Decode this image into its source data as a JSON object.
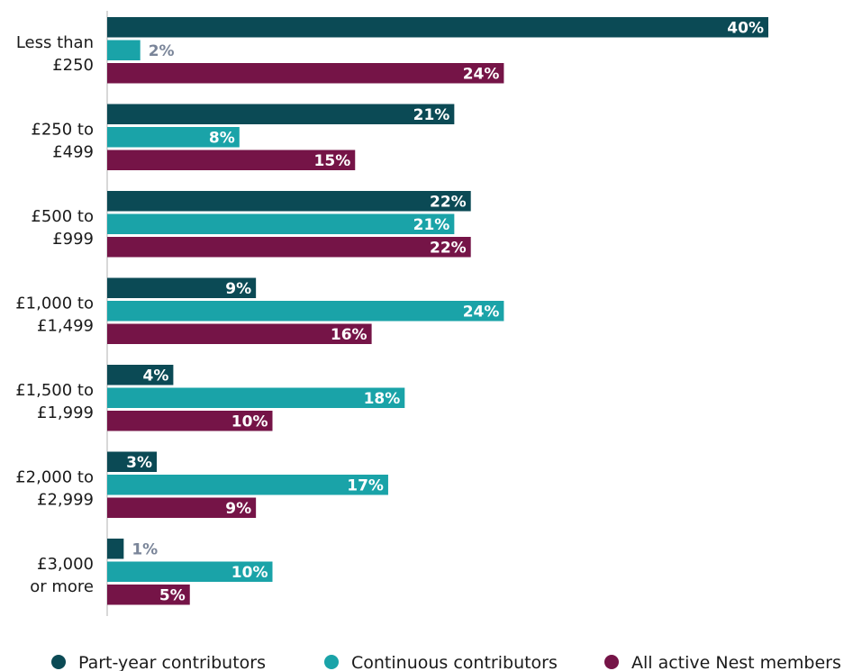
{
  "chart_data": {
    "type": "bar",
    "orientation": "horizontal",
    "categories": [
      [
        "Less than",
        "£250"
      ],
      [
        "£250 to",
        "£499"
      ],
      [
        "£500 to",
        "£999"
      ],
      [
        "£1,000 to",
        "£1,499"
      ],
      [
        "£1,500 to",
        "£1,999"
      ],
      [
        "£2,000 to",
        "£2,999"
      ],
      [
        "£3,000",
        "or more"
      ]
    ],
    "series": [
      {
        "name": "Part-year contributors",
        "color": "#0b4a55",
        "values": [
          40,
          21,
          22,
          9,
          4,
          3,
          1
        ]
      },
      {
        "name": "Continuous contributors",
        "color": "#1aa3a8",
        "values": [
          2,
          8,
          21,
          24,
          18,
          17,
          10
        ]
      },
      {
        "name": "All active Nest members",
        "color": "#751447",
        "values": [
          24,
          15,
          22,
          16,
          10,
          9,
          5
        ]
      }
    ],
    "value_suffix": "%",
    "xlim": [
      0,
      40
    ],
    "grid": false,
    "legend_position": "bottom",
    "title": "",
    "xlabel": "",
    "ylabel": ""
  }
}
